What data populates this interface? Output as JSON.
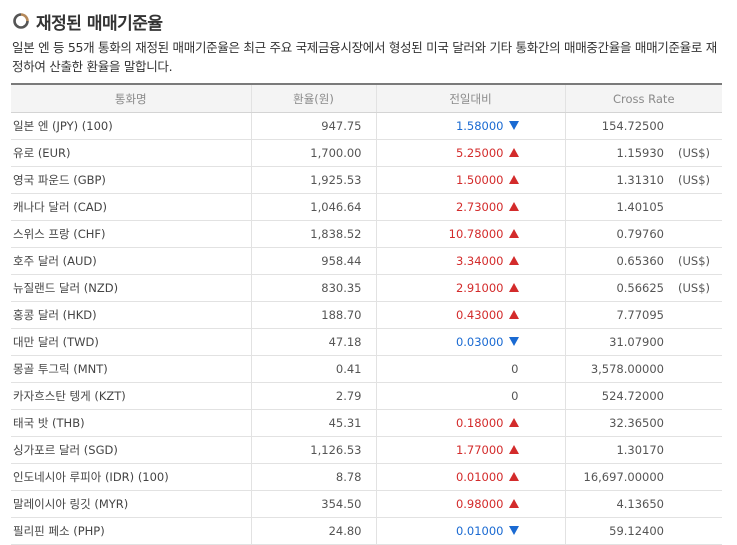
{
  "section": {
    "title": "재정된 매매기준율",
    "description": "일본 엔 등 55개 통화의 재정된 매매기준율은 최근 주요 국제금융시장에서 형성된 미국 달러와 기타 통화간의 매매중간율을 매매기준율로 재정하여 산출한 환율을 말합니다."
  },
  "table": {
    "headers": [
      "통화명",
      "환율(원)",
      "전일대비",
      "Cross Rate"
    ],
    "rows": [
      {
        "name": "일본 엔 (JPY) (100)",
        "rate": "947.75",
        "diff": "1.58000",
        "dir": "down",
        "cross": "154.72500",
        "unit": ""
      },
      {
        "name": "유로 (EUR)",
        "rate": "1,700.00",
        "diff": "5.25000",
        "dir": "up",
        "cross": "1.15930",
        "unit": "(US$)"
      },
      {
        "name": "영국 파운드 (GBP)",
        "rate": "1,925.53",
        "diff": "1.50000",
        "dir": "up",
        "cross": "1.31310",
        "unit": "(US$)"
      },
      {
        "name": "캐나다 달러 (CAD)",
        "rate": "1,046.64",
        "diff": "2.73000",
        "dir": "up",
        "cross": "1.40105",
        "unit": ""
      },
      {
        "name": "스위스 프랑 (CHF)",
        "rate": "1,838.52",
        "diff": "10.78000",
        "dir": "up",
        "cross": "0.79760",
        "unit": ""
      },
      {
        "name": "호주 달러 (AUD)",
        "rate": "958.44",
        "diff": "3.34000",
        "dir": "up",
        "cross": "0.65360",
        "unit": "(US$)"
      },
      {
        "name": "뉴질랜드 달러 (NZD)",
        "rate": "830.35",
        "diff": "2.91000",
        "dir": "up",
        "cross": "0.56625",
        "unit": "(US$)"
      },
      {
        "name": "홍콩 달러 (HKD)",
        "rate": "188.70",
        "diff": "0.43000",
        "dir": "up",
        "cross": "7.77095",
        "unit": ""
      },
      {
        "name": "대만 달러 (TWD)",
        "rate": "47.18",
        "diff": "0.03000",
        "dir": "down",
        "cross": "31.07900",
        "unit": ""
      },
      {
        "name": "몽골 투그릭 (MNT)",
        "rate": "0.41",
        "diff": "0",
        "dir": "none",
        "cross": "3,578.00000",
        "unit": ""
      },
      {
        "name": "카자흐스탄 텡게 (KZT)",
        "rate": "2.79",
        "diff": "0",
        "dir": "none",
        "cross": "524.72000",
        "unit": ""
      },
      {
        "name": "태국 밧 (THB)",
        "rate": "45.31",
        "diff": "0.18000",
        "dir": "up",
        "cross": "32.36500",
        "unit": ""
      },
      {
        "name": "싱가포르 달러 (SGD)",
        "rate": "1,126.53",
        "diff": "1.77000",
        "dir": "up",
        "cross": "1.30170",
        "unit": ""
      },
      {
        "name": "인도네시아 루피아 (IDR) (100)",
        "rate": "8.78",
        "diff": "0.01000",
        "dir": "up",
        "cross": "16,697.00000",
        "unit": ""
      },
      {
        "name": "말레이시아 링깃 (MYR)",
        "rate": "354.50",
        "diff": "0.98000",
        "dir": "up",
        "cross": "4.13650",
        "unit": ""
      },
      {
        "name": "필리핀 페소 (PHP)",
        "rate": "24.80",
        "diff": "0.01000",
        "dir": "down",
        "cross": "59.12400",
        "unit": ""
      }
    ]
  },
  "colors": {
    "up": "#d32b2b",
    "down": "#1a6ad2",
    "icon_accent": "#b5895a"
  }
}
